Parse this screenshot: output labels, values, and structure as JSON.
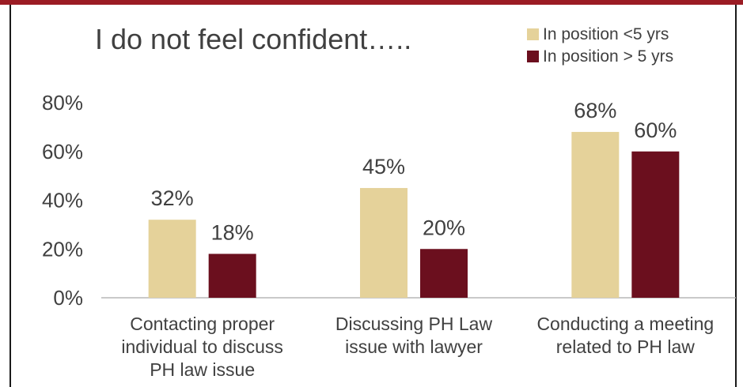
{
  "colors": {
    "top_bar": "#9b1c24",
    "border": "#1a1a1a",
    "series_1": "#e5d29a",
    "series_2": "#6b0f1e",
    "axis": "#b7b7b7",
    "text": "#404040"
  },
  "chart_data": {
    "type": "bar",
    "title": "I do not feel confident…..",
    "categories": [
      [
        "Contacting proper",
        "individual to discuss",
        "PH law issue"
      ],
      [
        "Discussing PH Law",
        "issue with lawyer"
      ],
      [
        "Conducting a meeting",
        "related to PH law"
      ]
    ],
    "series": [
      {
        "name": "In position <5 yrs",
        "values": [
          32,
          45,
          68
        ],
        "labels": [
          "32%",
          "45%",
          "68%"
        ]
      },
      {
        "name": "In position > 5 yrs",
        "values": [
          18,
          20,
          60
        ],
        "labels": [
          "18%",
          "20%",
          "60%"
        ]
      }
    ],
    "yticks": [
      "0%",
      "20%",
      "40%",
      "60%",
      "80%"
    ],
    "ytick_values": [
      0,
      20,
      40,
      60,
      80
    ],
    "ylim": [
      0,
      80
    ],
    "grid": false,
    "legend_position": "top-right"
  }
}
